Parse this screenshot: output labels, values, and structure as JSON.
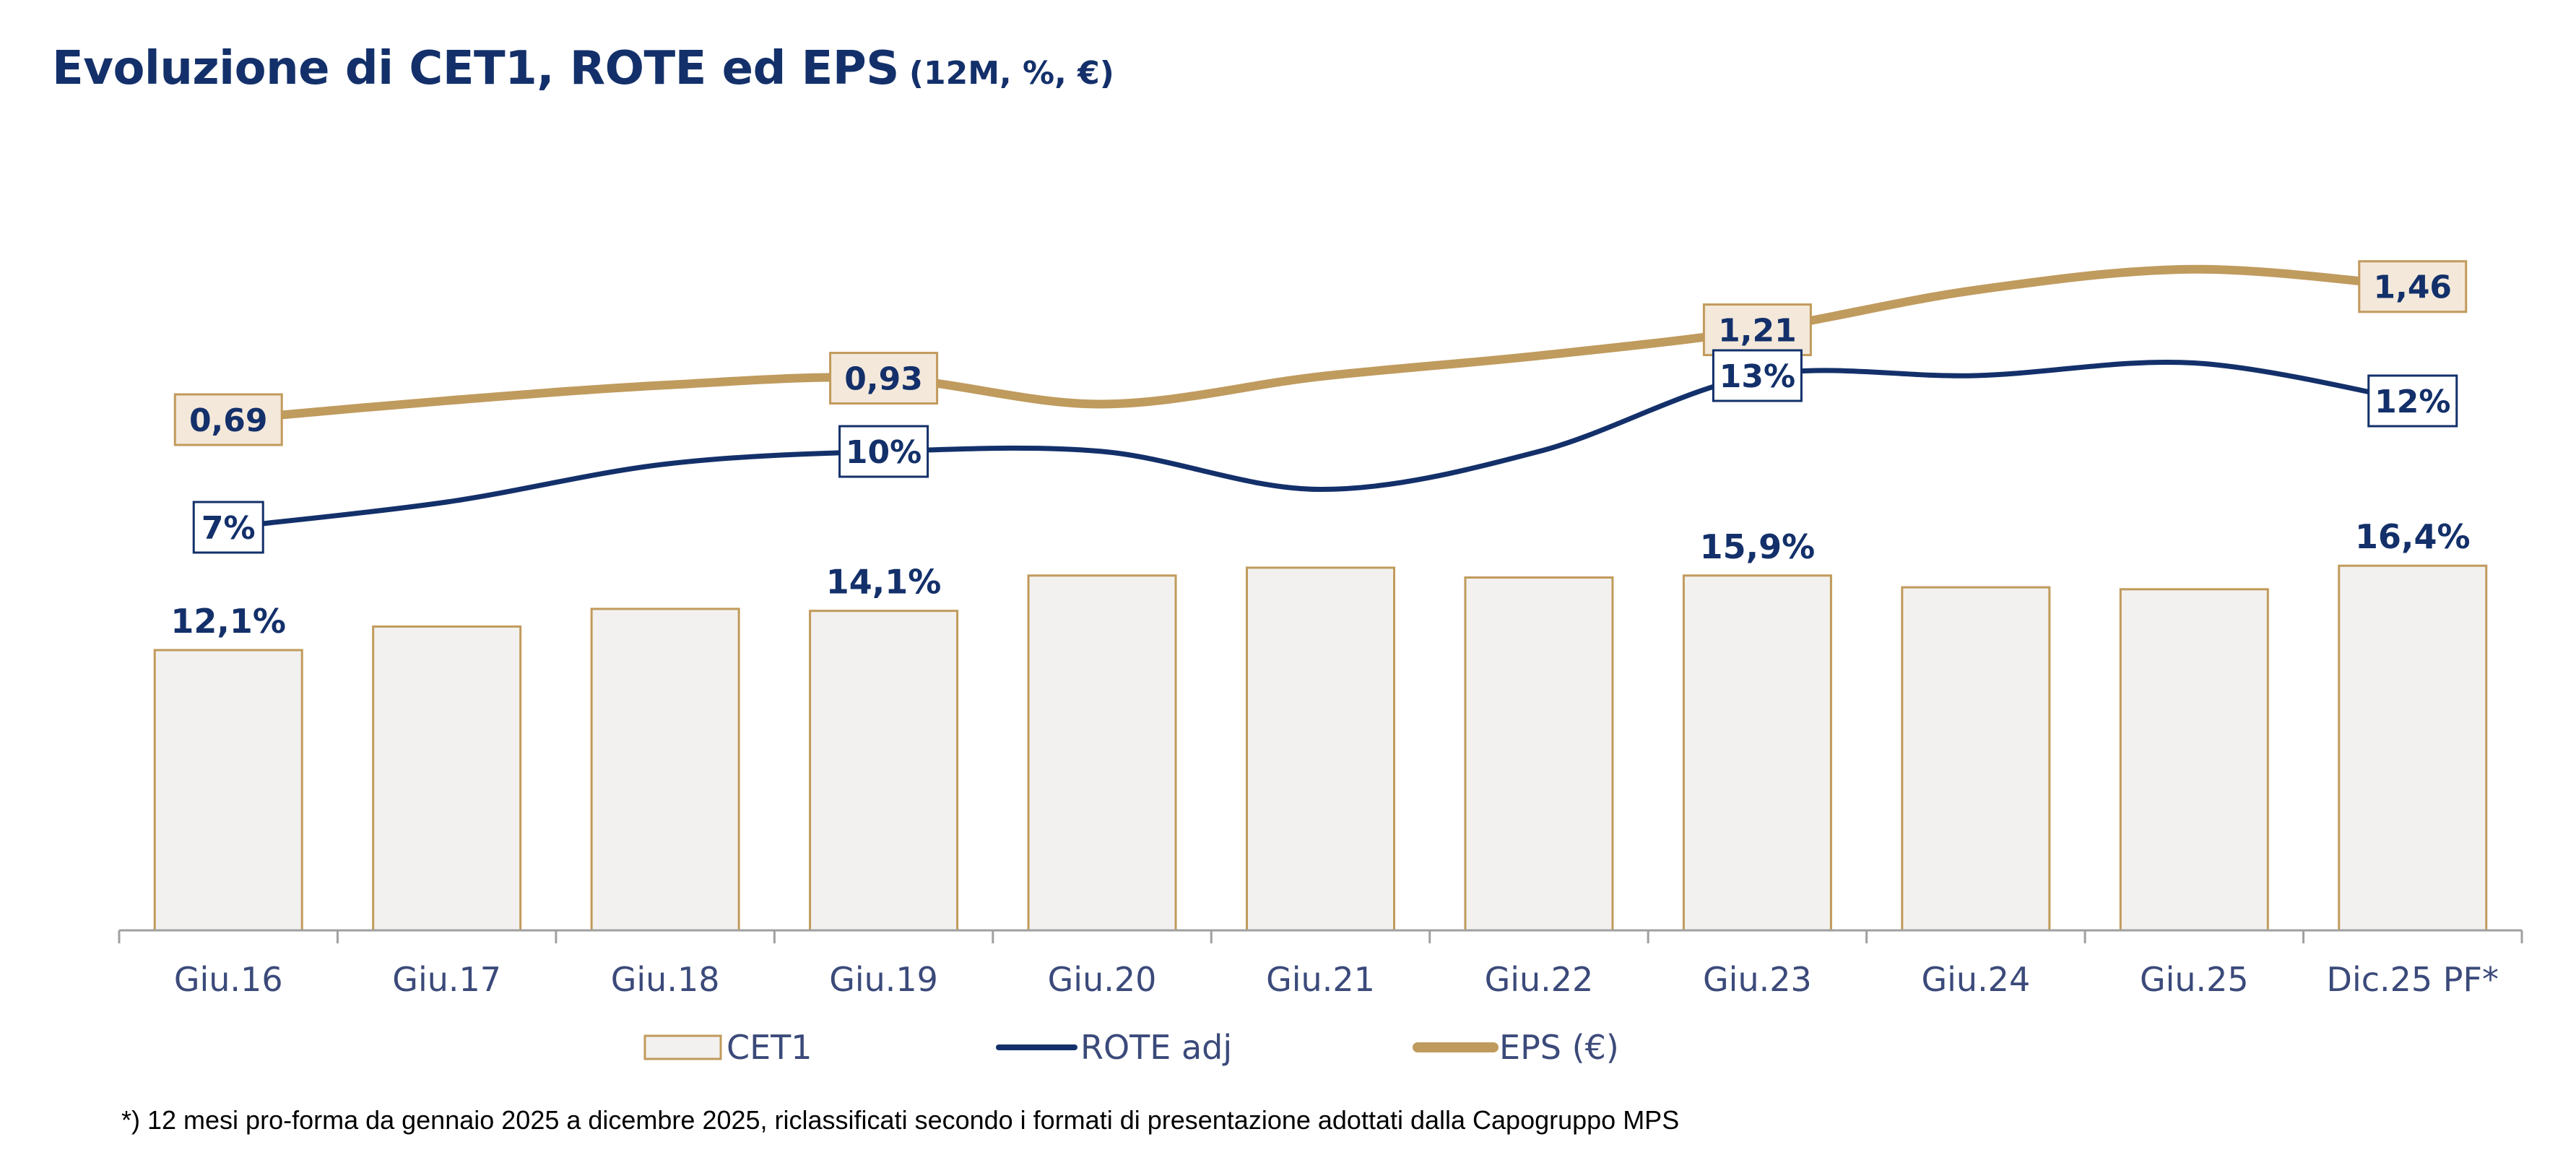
{
  "title": "Evoluzione di CET1, ROTE ed EPS",
  "subtitle": "(12M, %, €)",
  "footnote": "*)  12 mesi pro-forma da gennaio 2025 a dicembre 2025, riclassificati secondo i formati di presentazione adottati dalla Capogruppo MPS",
  "colors": {
    "title": "#13306a",
    "bar_fill": "#f2f1f0",
    "bar_stroke": "#c19a5b",
    "rote_line": "#13306a",
    "eps_line": "#bf9b5e",
    "eps_label_fill": "#f3e8da",
    "axis": "#a0a0a0",
    "tick_text": "#3b4a7a",
    "label_text": "#13306a"
  },
  "chart_data": {
    "type": "bar",
    "categories": [
      "Giu.16",
      "Giu.17",
      "Giu.18",
      "Giu.19",
      "Giu.20",
      "Giu.21",
      "Giu.22",
      "Giu.23",
      "Giu.24",
      "Giu.25",
      "Dic.25 PF*"
    ],
    "legend_position": "bottom",
    "grid": false,
    "series": [
      {
        "name": "CET1",
        "type": "bar",
        "values": [
          12.1,
          13.3,
          14.2,
          14.1,
          15.9,
          16.3,
          15.8,
          15.9,
          15.3,
          15.2,
          16.4
        ],
        "data_labels": [
          "12,1%",
          "",
          "",
          "14,1%",
          "",
          "",
          "",
          "15,9%",
          "",
          "",
          "16,4%"
        ]
      },
      {
        "name": "ROTE adj",
        "type": "line",
        "values": [
          7,
          8,
          9.5,
          10,
          10,
          8.5,
          10,
          13,
          13,
          13.5,
          12
        ],
        "data_labels": [
          "7%",
          "",
          "",
          "10%",
          "",
          "",
          "",
          "13%",
          "",
          "",
          "12%"
        ]
      },
      {
        "name": "EPS (€)",
        "type": "line",
        "values": [
          0.69,
          0.8,
          0.89,
          0.93,
          0.78,
          0.94,
          1.06,
          1.21,
          1.44,
          1.56,
          1.46
        ],
        "data_labels": [
          "0,69",
          "",
          "",
          "0,93",
          "",
          "",
          "",
          "1,21",
          "",
          "",
          "1,46"
        ]
      }
    ]
  }
}
